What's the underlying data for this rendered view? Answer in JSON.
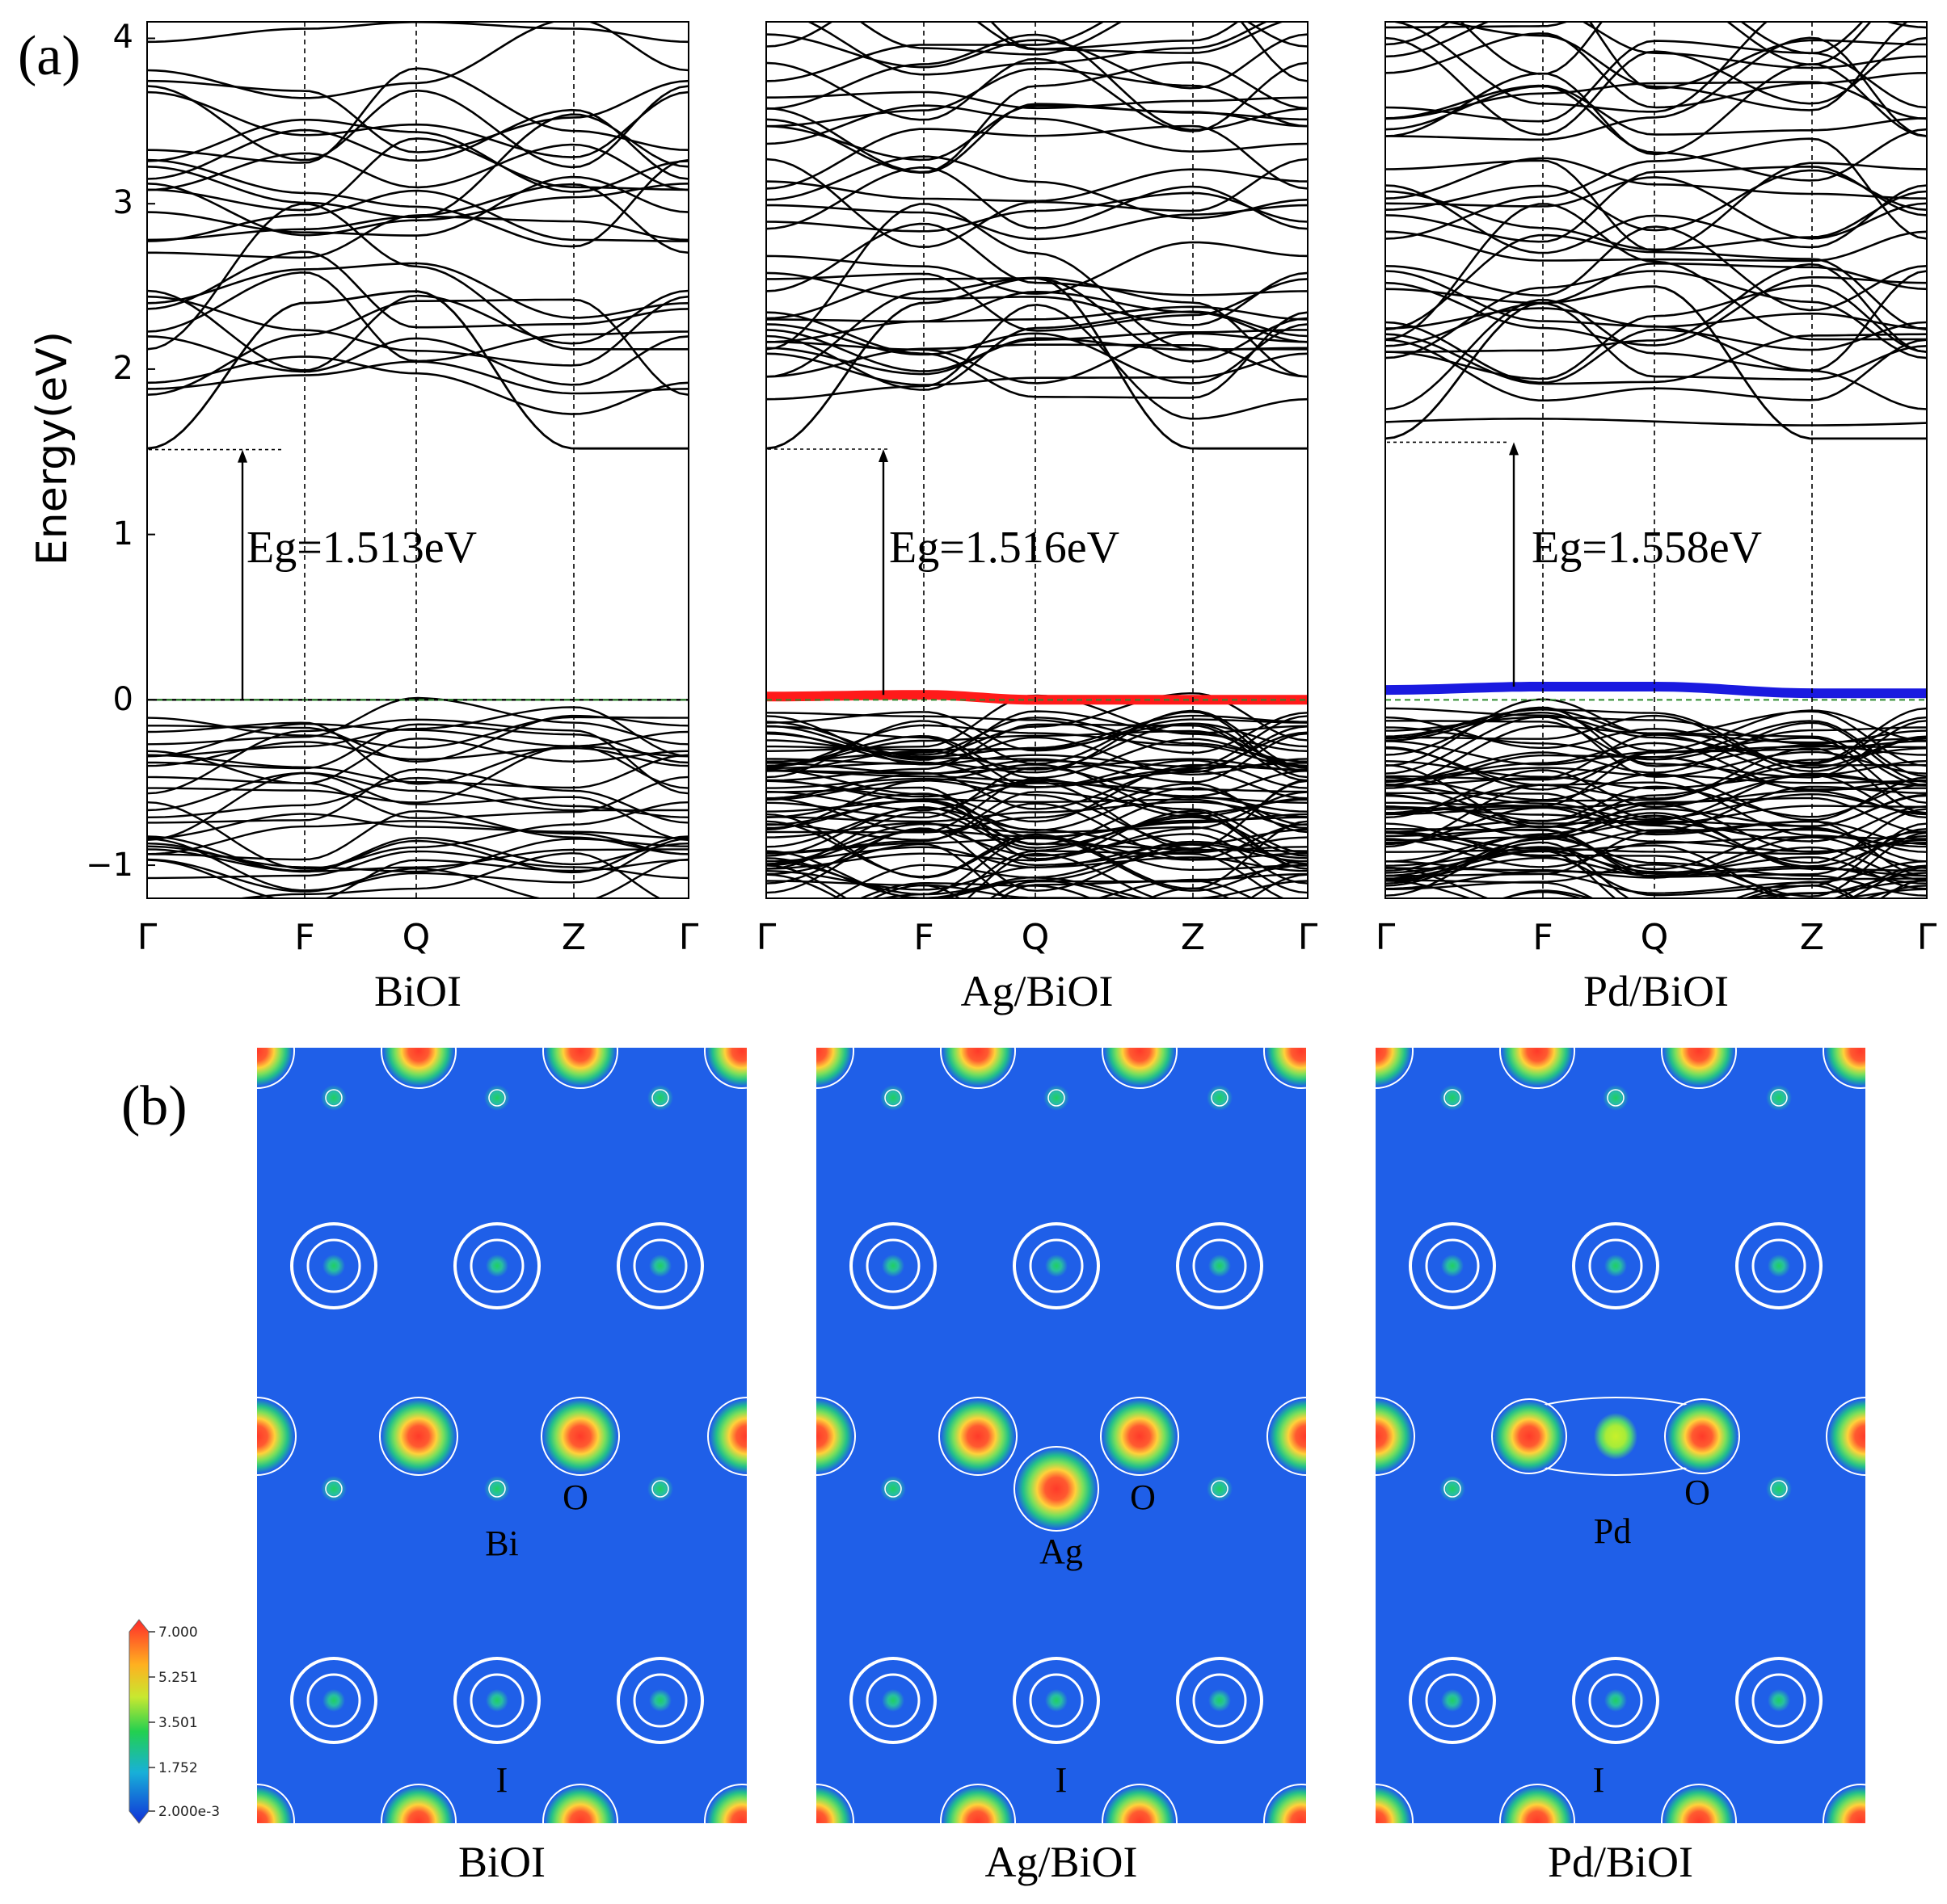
{
  "panel_a": {
    "label": "(a)",
    "ylabel": "Energy(eV)",
    "ytick_labels": [
      "4",
      "3",
      "2",
      "1",
      "0",
      "−1"
    ],
    "kpoints": [
      "Γ",
      "F",
      "Q",
      "Z",
      "Γ"
    ],
    "colors": {
      "bands": "#000000",
      "ag_state": "#ff1a1a",
      "pd_state": "#1a1ae0",
      "fermi": "#2e8b2e"
    }
  },
  "chart_data": [
    {
      "type": "line",
      "title": "BiOI",
      "xlabel": "",
      "ylabel": "Energy(eV)",
      "ylim": [
        -1.2,
        4.1
      ],
      "x_ticks": [
        "Γ",
        "F",
        "Q",
        "Z",
        "Γ"
      ],
      "annotation": "Eg=1.513eV",
      "band_gap_eV": 1.513,
      "series": [
        {
          "name": "CBM",
          "values": [
            1.52,
            2.4,
            2.47,
            1.52,
            1.52
          ]
        },
        {
          "name": "VBM",
          "values": [
            0.0,
            0.0,
            0.0,
            0.0,
            0.0
          ]
        }
      ]
    },
    {
      "type": "line",
      "title": "Ag/BiOI",
      "xlabel": "",
      "ylabel": "Energy(eV)",
      "ylim": [
        -1.2,
        4.1
      ],
      "x_ticks": [
        "Γ",
        "F",
        "Q",
        "Z",
        "Γ"
      ],
      "annotation": "Eg=1.516eV",
      "band_gap_eV": 1.516,
      "series": [
        {
          "name": "CBM",
          "values": [
            1.52,
            2.4,
            2.55,
            1.52,
            1.52
          ]
        },
        {
          "name": "Ag impurity state",
          "values": [
            0.02,
            0.03,
            0.0,
            0.0,
            0.0
          ]
        }
      ]
    },
    {
      "type": "line",
      "title": "Pd/BiOI",
      "xlabel": "",
      "ylabel": "Energy(eV)",
      "ylim": [
        -1.2,
        4.1
      ],
      "x_ticks": [
        "Γ",
        "F",
        "Q",
        "Z",
        "Γ"
      ],
      "annotation": "Eg=1.558eV",
      "band_gap_eV": 1.558,
      "series": [
        {
          "name": "CBM",
          "values": [
            1.58,
            2.4,
            2.5,
            1.58,
            1.58
          ]
        },
        {
          "name": "Pd impurity state",
          "values": [
            0.06,
            0.08,
            0.08,
            0.04,
            0.04
          ]
        }
      ]
    }
  ],
  "panel_b": {
    "label": "(b)",
    "colorbar_labels": [
      "7.000",
      "5.251",
      "3.501",
      "1.752",
      "2.000e-3"
    ],
    "maps": [
      {
        "title": "BiOI",
        "atom_labels": [
          "O",
          "Bi",
          "I"
        ]
      },
      {
        "title": "Ag/BiOI",
        "atom_labels": [
          "O",
          "Ag",
          "I"
        ]
      },
      {
        "title": "Pd/BiOI",
        "atom_labels": [
          "O",
          "Pd",
          "I"
        ]
      }
    ],
    "colors": {
      "background": "#1f5fe8",
      "contour": "#ffffff"
    }
  }
}
